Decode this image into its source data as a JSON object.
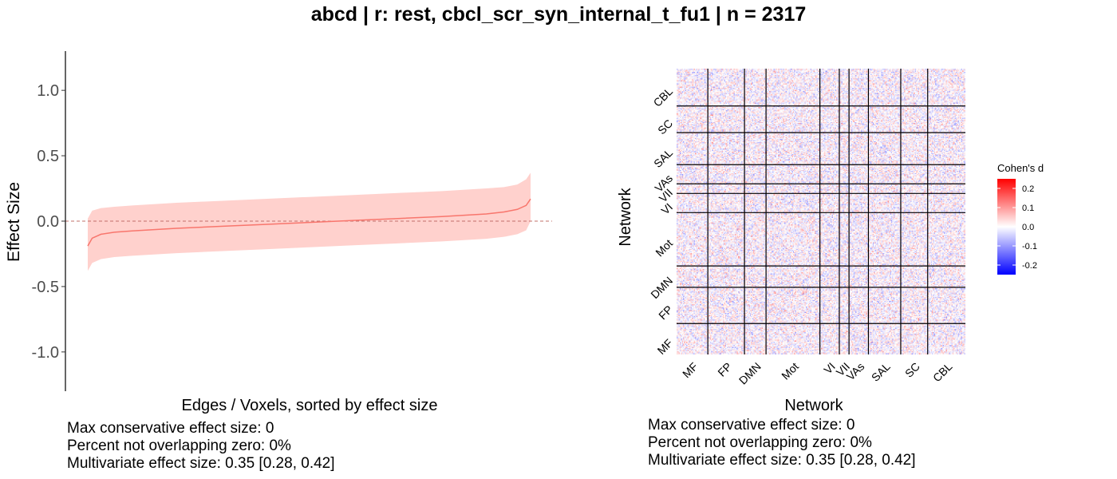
{
  "title": "abcd | r: rest, cbcl_scr_syn_internal_t_fu1 | n = 2317",
  "chart_data": [
    {
      "type": "line",
      "subtype": "sorted effect sizes with confidence band",
      "xlabel": "Edges / Voxels, sorted by effect size",
      "ylabel": "Effect Size",
      "ylim": [
        -1.3,
        1.3
      ],
      "yticks": [
        1.0,
        0.5,
        0.0,
        -0.5,
        -1.0
      ],
      "ytick_labels": [
        "1.0",
        "0.5",
        "0.0",
        "-0.5",
        "-1.0"
      ],
      "reference_line": 0,
      "x": [
        0,
        0.01,
        0.03,
        0.06,
        0.1,
        0.2,
        0.3,
        0.4,
        0.5,
        0.6,
        0.7,
        0.8,
        0.9,
        0.94,
        0.97,
        0.99,
        1.0
      ],
      "series": [
        {
          "role": "estimate",
          "values": [
            -0.19,
            -0.13,
            -0.1,
            -0.085,
            -0.075,
            -0.055,
            -0.04,
            -0.025,
            -0.01,
            0.005,
            0.02,
            0.035,
            0.055,
            0.07,
            0.09,
            0.12,
            0.17
          ]
        },
        {
          "role": "upper",
          "values": [
            0.02,
            0.08,
            0.1,
            0.11,
            0.12,
            0.14,
            0.155,
            0.17,
            0.185,
            0.2,
            0.215,
            0.23,
            0.25,
            0.26,
            0.28,
            0.32,
            0.37
          ]
        },
        {
          "role": "lower",
          "values": [
            -0.38,
            -0.32,
            -0.29,
            -0.275,
            -0.265,
            -0.245,
            -0.23,
            -0.215,
            -0.2,
            -0.185,
            -0.17,
            -0.155,
            -0.135,
            -0.12,
            -0.1,
            -0.07,
            0.0
          ]
        }
      ],
      "colors": {
        "line": "#f8766d",
        "band": "#ffd1cd",
        "zero_line": "#c0706a"
      },
      "stats": [
        "Max conservative effect size: 0",
        "Percent not overlapping zero: 0%",
        "Multivariate effect size: 0.35 [0.28, 0.42]"
      ]
    },
    {
      "type": "heatmap",
      "xlabel": "Network",
      "ylabel": "Network",
      "x_networks": [
        "MF",
        "FP",
        "DMN",
        "Mot",
        "VI",
        "VII",
        "VAs",
        "SAL",
        "SC",
        "CBL"
      ],
      "y_networks_top_to_bottom": [
        "CBL",
        "SC",
        "SAL",
        "VAs",
        "VII",
        "VI",
        "Mot",
        "DMN",
        "FP",
        "MF"
      ],
      "network_sizes": [
        29,
        34,
        20,
        50,
        18,
        9,
        18,
        30,
        25,
        35
      ],
      "legend": {
        "title": "Cohen's d",
        "ticks": [
          0.2,
          0.1,
          0.0,
          -0.1,
          -0.2
        ],
        "tick_labels": [
          "0.2",
          "0.1",
          "0.0",
          "-0.1",
          "-0.2"
        ],
        "range": [
          -0.25,
          0.25
        ],
        "colors": {
          "low": "#0000ff",
          "mid": "#ffffff",
          "high": "#ff0000"
        }
      },
      "stats": [
        "Max conservative effect size: 0",
        "Percent not overlapping zero: 0%",
        "Multivariate effect size: 0.35 [0.28, 0.42]"
      ]
    }
  ]
}
